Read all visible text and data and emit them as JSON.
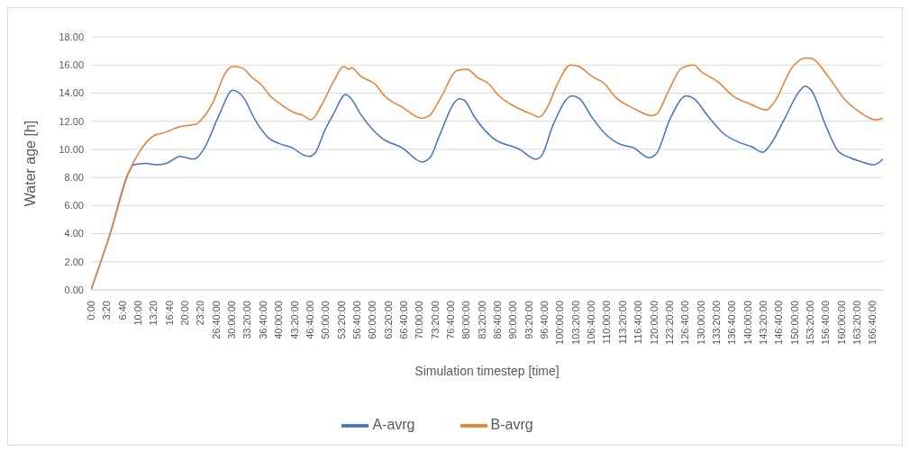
{
  "chart_data": {
    "type": "line",
    "xlabel": "Simulation timestep [time]",
    "ylabel": "Water age [h]",
    "grid": "y",
    "legend": "bottom",
    "line_style": "solid",
    "xlim": [
      0,
      168.9
    ],
    "ylim": [
      0,
      18
    ],
    "yticks": [
      {
        "value": 0,
        "label": "0.00"
      },
      {
        "value": 2,
        "label": "2.00"
      },
      {
        "value": 4,
        "label": "4.00"
      },
      {
        "value": 6,
        "label": "6.00"
      },
      {
        "value": 8,
        "label": "8.00"
      },
      {
        "value": 10,
        "label": "10.00"
      },
      {
        "value": 12,
        "label": "12.00"
      },
      {
        "value": 14,
        "label": "14.00"
      },
      {
        "value": 16,
        "label": "16.00"
      },
      {
        "value": 18,
        "label": "18.00"
      }
    ],
    "xticks": [
      {
        "value": 0,
        "label": "0:00"
      },
      {
        "value": 3.333333,
        "label": "3:20"
      },
      {
        "value": 6.666667,
        "label": "6:40"
      },
      {
        "value": 10,
        "label": "10:00"
      },
      {
        "value": 13.333333,
        "label": "13:20"
      },
      {
        "value": 16.666667,
        "label": "16:40"
      },
      {
        "value": 20,
        "label": "20:00"
      },
      {
        "value": 23.333333,
        "label": "23:20"
      },
      {
        "value": 26.666667,
        "label": "26:40:00"
      },
      {
        "value": 30,
        "label": "30:00:00"
      },
      {
        "value": 33.333333,
        "label": "33:20:00"
      },
      {
        "value": 36.666667,
        "label": "36:40:00"
      },
      {
        "value": 40,
        "label": "40:00:00"
      },
      {
        "value": 43.333333,
        "label": "43:20:00"
      },
      {
        "value": 46.666667,
        "label": "46:40:00"
      },
      {
        "value": 50,
        "label": "50:00:00"
      },
      {
        "value": 53.333333,
        "label": "53:20:00"
      },
      {
        "value": 56.666667,
        "label": "56:40:00"
      },
      {
        "value": 60,
        "label": "60:00:00"
      },
      {
        "value": 63.333333,
        "label": "63:20:00"
      },
      {
        "value": 66.666667,
        "label": "66:40:00"
      },
      {
        "value": 70,
        "label": "70:00:00"
      },
      {
        "value": 73.333333,
        "label": "73:20:00"
      },
      {
        "value": 76.666667,
        "label": "76:40:00"
      },
      {
        "value": 80,
        "label": "80:00:00"
      },
      {
        "value": 83.333333,
        "label": "83:20:00"
      },
      {
        "value": 86.666667,
        "label": "86:40:00"
      },
      {
        "value": 90,
        "label": "90:00:00"
      },
      {
        "value": 93.333333,
        "label": "93:20:00"
      },
      {
        "value": 96.666667,
        "label": "96:40:00"
      },
      {
        "value": 100,
        "label": "100:00:00"
      },
      {
        "value": 103.333333,
        "label": "103:20:00"
      },
      {
        "value": 106.666667,
        "label": "106:40:00"
      },
      {
        "value": 110,
        "label": "110:00:00"
      },
      {
        "value": 113.333333,
        "label": "113:20:00"
      },
      {
        "value": 116.666667,
        "label": "116:40:00"
      },
      {
        "value": 120,
        "label": "120:00:00"
      },
      {
        "value": 123.333333,
        "label": "123:20:00"
      },
      {
        "value": 126.666667,
        "label": "126:40:00"
      },
      {
        "value": 130,
        "label": "130:00:00"
      },
      {
        "value": 133.333333,
        "label": "133:20:00"
      },
      {
        "value": 136.666667,
        "label": "136:40:00"
      },
      {
        "value": 140,
        "label": "140:00:00"
      },
      {
        "value": 143.333333,
        "label": "143:20:00"
      },
      {
        "value": 146.666667,
        "label": "146:40:00"
      },
      {
        "value": 150,
        "label": "150:00:00"
      },
      {
        "value": 153.333333,
        "label": "153:20:00"
      },
      {
        "value": 156.666667,
        "label": "156:40:00"
      },
      {
        "value": 160,
        "label": "160:00:00"
      },
      {
        "value": 163.333333,
        "label": "163:20:00"
      },
      {
        "value": 166.666667,
        "label": "166:40:00"
      }
    ],
    "series": [
      {
        "name": "A-avrg",
        "color": "#4472c4",
        "x": [
          0,
          4.0,
          8.1,
          9.1,
          11.7,
          13.9,
          16.1,
          19.0,
          21.9,
          22.9,
          24.2,
          27.4,
          30.2,
          31.2,
          32.5,
          35.0,
          37.9,
          40.2,
          43.0,
          45.3,
          46.6,
          47.9,
          49.8,
          51.7,
          54.3,
          55.5,
          57.5,
          62.0,
          66.4,
          70.6,
          72.5,
          74.1,
          78.6,
          79.6,
          81.8,
          85.7,
          91.4,
          94.9,
          96.2,
          98.5,
          102.6,
          104.2,
          106.8,
          109.4,
          112.6,
          115.8,
          119.0,
          120.6,
          123.4,
          127.0,
          128.6,
          131.5,
          135.0,
          138.2,
          140.8,
          143.3,
          144.6,
          147.8,
          151.0,
          152.3,
          153.6,
          156.8,
          159.3,
          161.9,
          164.5,
          167.0,
          168.9
        ],
        "values": [
          0,
          3.9,
          8.4,
          8.9,
          9.0,
          8.9,
          9.0,
          9.5,
          9.3,
          9.5,
          10.1,
          12.5,
          14.2,
          14.1,
          13.7,
          12.1,
          10.8,
          10.4,
          10.1,
          9.6,
          9.5,
          9.8,
          11.3,
          12.5,
          13.9,
          13.6,
          12.5,
          10.8,
          10.1,
          9.1,
          9.5,
          10.8,
          13.6,
          13.5,
          12.3,
          10.8,
          10.0,
          9.3,
          9.6,
          11.7,
          13.8,
          13.6,
          12.3,
          11.2,
          10.4,
          10.1,
          9.4,
          9.7,
          12.1,
          13.8,
          13.6,
          12.4,
          11.1,
          10.5,
          10.2,
          9.8,
          10.2,
          12.1,
          14.1,
          14.5,
          14.2,
          11.6,
          9.9,
          9.4,
          9.1,
          8.9,
          9.3
        ]
      },
      {
        "name": "B-avrg",
        "color": "#ed7d31",
        "x": [
          0,
          4.0,
          8.1,
          10.1,
          13.6,
          15.8,
          18.7,
          22.5,
          23.5,
          26.1,
          28.6,
          30.2,
          32.2,
          34.4,
          36.3,
          38.2,
          40.5,
          43.4,
          45.3,
          46.9,
          49.1,
          51.7,
          53.9,
          55.0,
          55.5,
          57.5,
          60.7,
          62.6,
          66.4,
          70.6,
          72.2,
          74.8,
          78.0,
          80.2,
          82.5,
          84.7,
          87.0,
          90.1,
          94.0,
          95.6,
          97.5,
          99.4,
          102.3,
          104.0,
          106.8,
          109.4,
          111.9,
          115.8,
          119.6,
          120.6,
          123.1,
          126.0,
          128.6,
          129.9,
          133.7,
          136.9,
          140.8,
          144.0,
          145.6,
          149.7,
          152.3,
          153.3,
          157.4,
          160.6,
          163.7,
          167.3,
          168.9
        ],
        "values": [
          0,
          3.9,
          8.4,
          9.7,
          11.0,
          11.2,
          11.6,
          11.8,
          12.1,
          13.4,
          15.4,
          15.9,
          15.8,
          15.1,
          14.6,
          13.8,
          13.2,
          12.6,
          12.4,
          12.1,
          13.1,
          14.8,
          15.9,
          15.7,
          15.8,
          15.2,
          14.6,
          13.8,
          13.0,
          12.2,
          12.4,
          13.8,
          15.6,
          15.7,
          15.1,
          14.7,
          13.8,
          13.1,
          12.5,
          12.3,
          13.1,
          14.6,
          16.0,
          15.9,
          15.2,
          14.7,
          13.7,
          12.9,
          12.4,
          12.5,
          14.1,
          15.8,
          16.0,
          15.6,
          14.8,
          13.8,
          13.2,
          12.8,
          13.3,
          15.9,
          16.5,
          16.5,
          15.1,
          13.6,
          12.7,
          12.1,
          12.2
        ]
      }
    ]
  }
}
